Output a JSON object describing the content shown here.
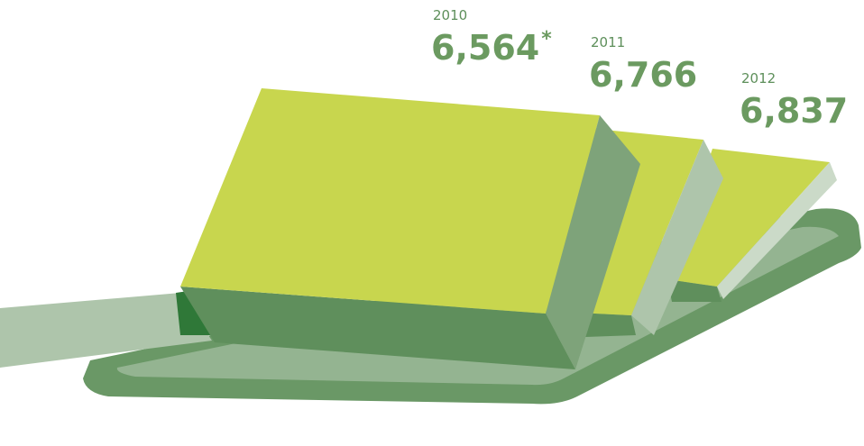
{
  "chart_data": {
    "type": "block3d",
    "categories": [
      "2010",
      "2011",
      "2012"
    ],
    "values": [
      6564,
      6766,
      6837
    ],
    "value_labels": [
      "6,564",
      "6,766",
      "6,837"
    ],
    "annotations": [
      "*"
    ],
    "color": "#c8d64e"
  }
}
